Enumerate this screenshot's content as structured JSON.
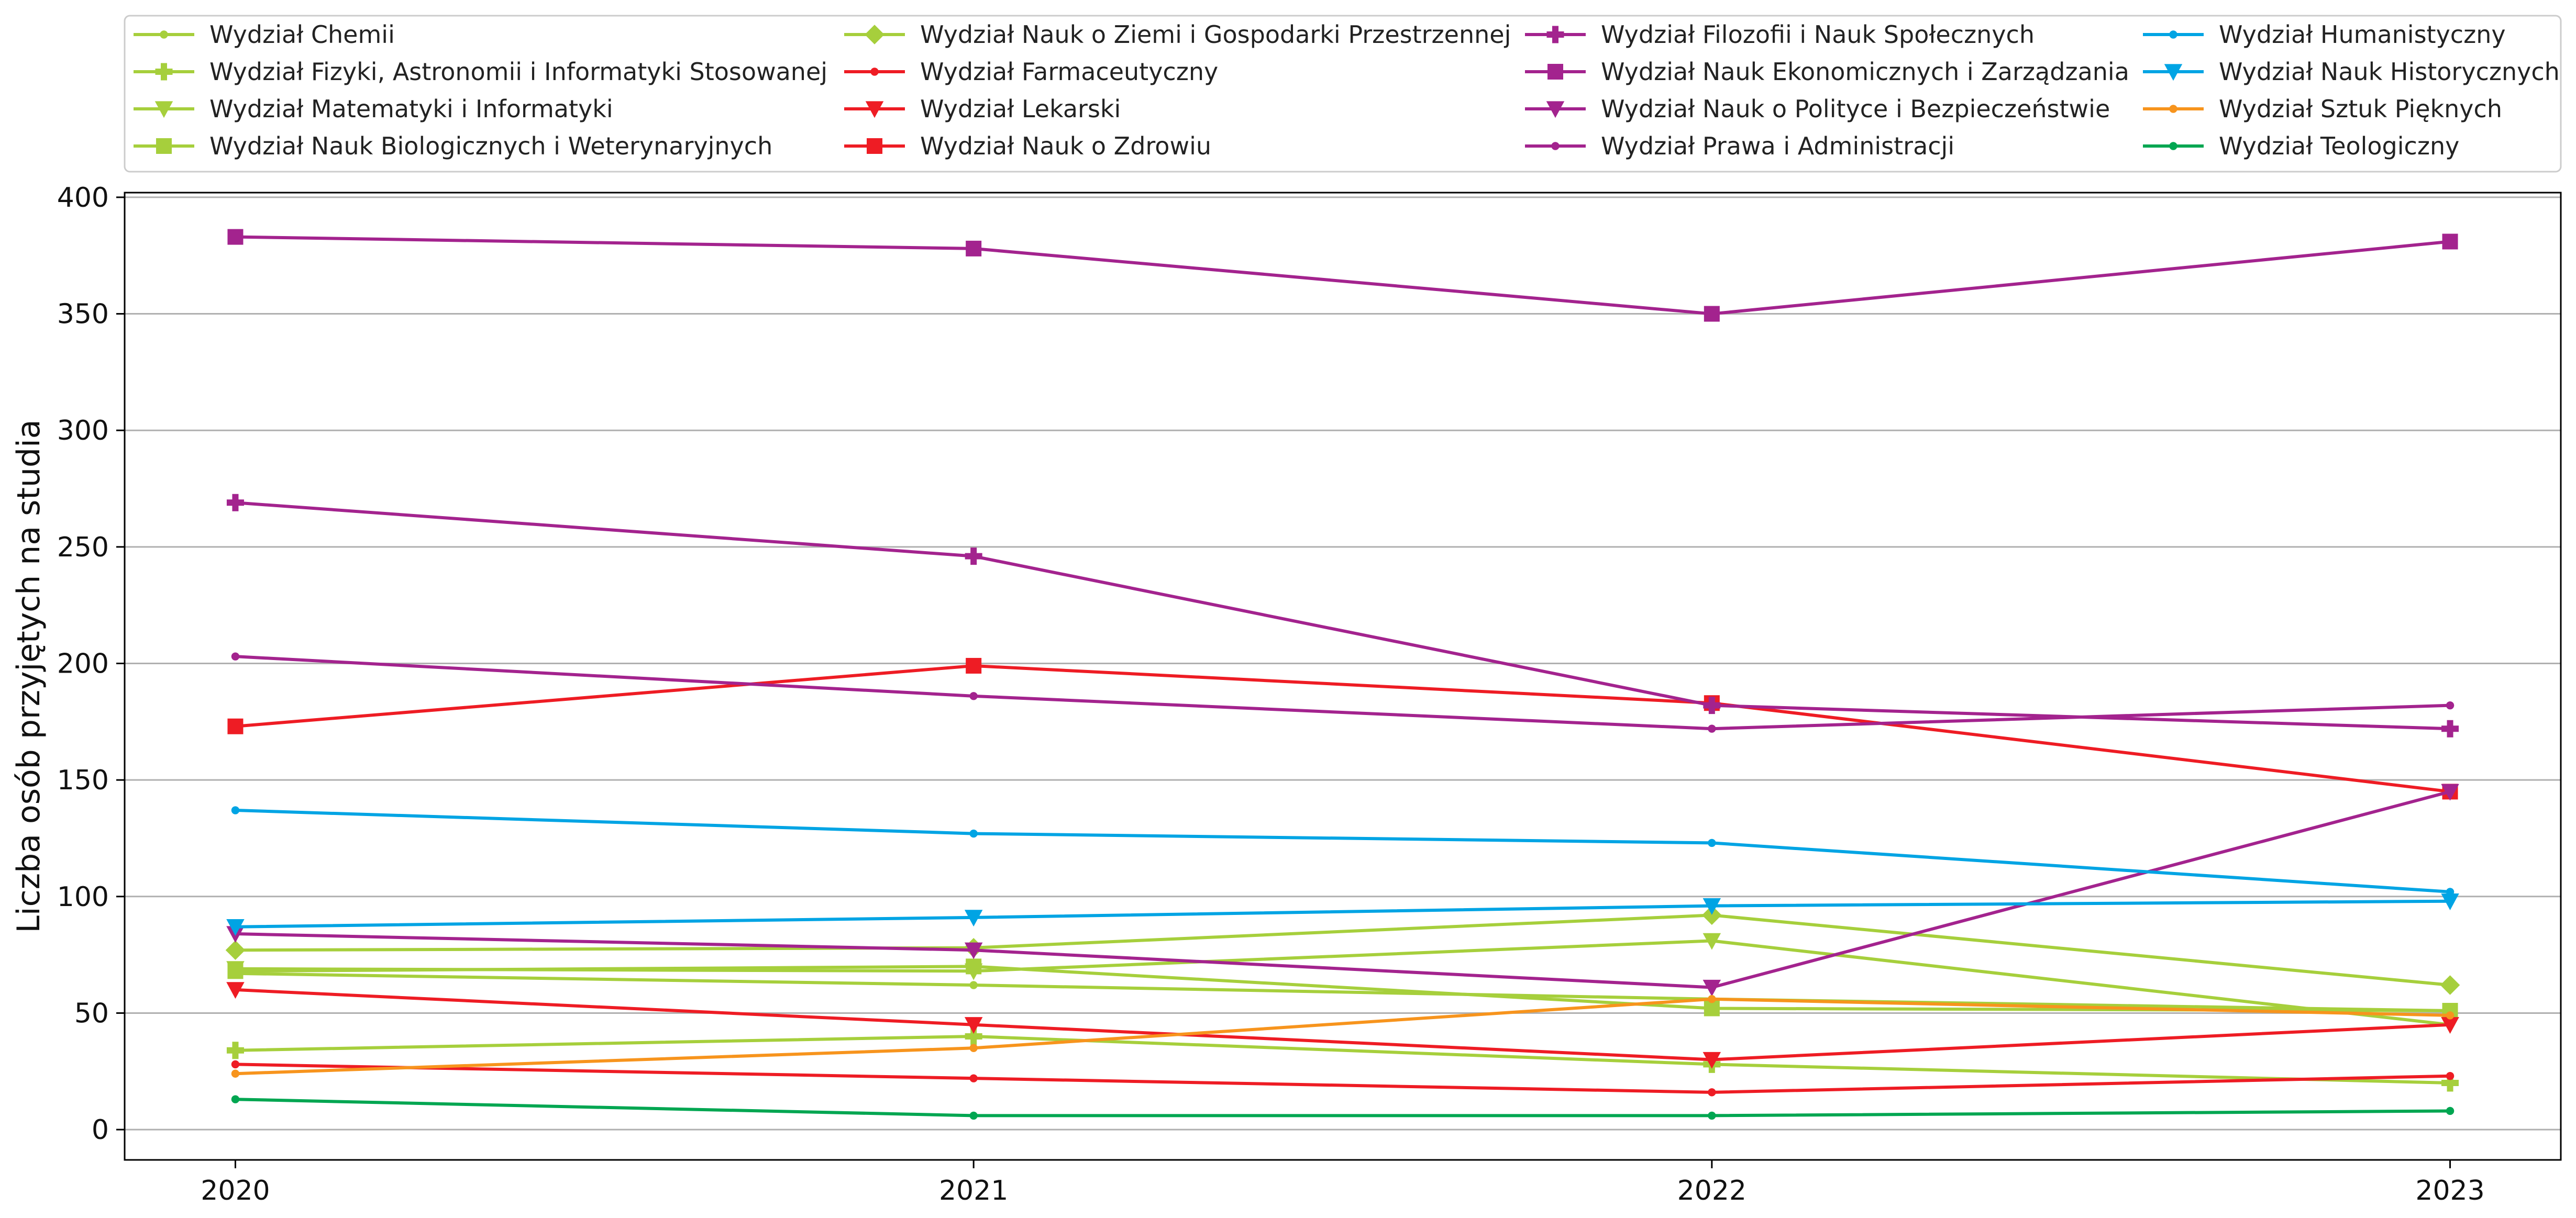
{
  "chart_data": {
    "type": "line",
    "x": [
      2020,
      2021,
      2022,
      2023
    ],
    "xlabel": "",
    "ylabel": "Liczba osób przyjętych na studia",
    "xlim": [
      2019.85,
      2023.15
    ],
    "ylim": [
      -13,
      402
    ],
    "yticks": [
      0,
      50,
      100,
      150,
      200,
      250,
      300,
      350,
      400
    ],
    "grid": "horizontal",
    "legend_position": "top",
    "series": [
      {
        "name": "Wydział Chemii",
        "color": "#a6cf3c",
        "marker": "dot",
        "values": [
          67,
          62,
          56,
          51
        ]
      },
      {
        "name": "Wydział Fizyki, Astronomii i Informatyki Stosowanej",
        "color": "#a6cf3c",
        "marker": "plus",
        "values": [
          34,
          40,
          28,
          20
        ]
      },
      {
        "name": "Wydział Matematyki i Informatyki",
        "color": "#a6cf3c",
        "marker": "triangle-down",
        "values": [
          69,
          68,
          81,
          45
        ]
      },
      {
        "name": "Wydział Nauk Biologicznych i Weterynaryjnych",
        "color": "#a6cf3c",
        "marker": "square",
        "values": [
          68,
          70,
          52,
          51
        ]
      },
      {
        "name": "Wydział Nauk o Ziemi i Gospodarki Przestrzennej",
        "color": "#a6cf3c",
        "marker": "diamond",
        "values": [
          77,
          78,
          92,
          62
        ]
      },
      {
        "name": "Wydział Farmaceutyczny",
        "color": "#ee1c24",
        "marker": "dot",
        "values": [
          28,
          22,
          16,
          23
        ]
      },
      {
        "name": "Wydział Lekarski",
        "color": "#ee1c24",
        "marker": "triangle-down",
        "values": [
          60,
          45,
          30,
          45
        ]
      },
      {
        "name": "Wydział Nauk o Zdrowiu",
        "color": "#ee1c24",
        "marker": "square",
        "values": [
          173,
          199,
          183,
          145
        ]
      },
      {
        "name": "Wydział Filozofii i Nauk Społecznych",
        "color": "#a3238e",
        "marker": "plus",
        "values": [
          269,
          246,
          182,
          172
        ]
      },
      {
        "name": "Wydział Nauk Ekonomicznych i Zarządzania",
        "color": "#a3238e",
        "marker": "square",
        "values": [
          383,
          378,
          350,
          381
        ]
      },
      {
        "name": "Wydział Nauk o Polityce i Bezpieczeństwie",
        "color": "#a3238e",
        "marker": "triangle-down",
        "values": [
          84,
          77,
          61,
          145
        ]
      },
      {
        "name": "Wydział Prawa i Administracji",
        "color": "#a3238e",
        "marker": "dot",
        "values": [
          203,
          186,
          172,
          182
        ]
      },
      {
        "name": "Wydział Humanistyczny",
        "color": "#00a4e4",
        "marker": "dot",
        "values": [
          137,
          127,
          123,
          102
        ]
      },
      {
        "name": "Wydział Nauk Historycznych",
        "color": "#00a4e4",
        "marker": "triangle-down",
        "values": [
          87,
          91,
          96,
          98
        ]
      },
      {
        "name": "Wydział Sztuk Pięknych",
        "color": "#f7941d",
        "marker": "dot",
        "values": [
          24,
          35,
          56,
          49
        ]
      },
      {
        "name": "Wydział Teologiczny",
        "color": "#00a651",
        "marker": "dot",
        "values": [
          13,
          6,
          6,
          8
        ]
      }
    ]
  }
}
